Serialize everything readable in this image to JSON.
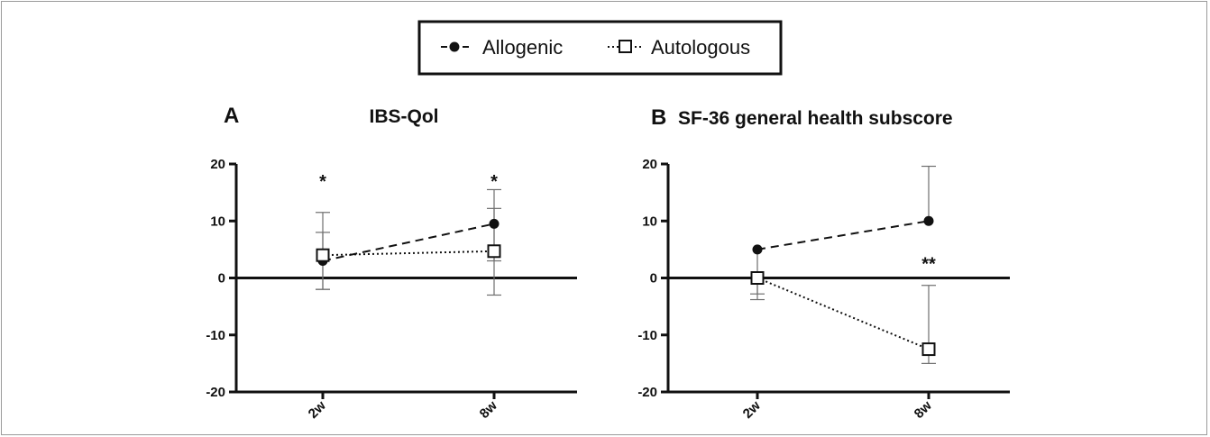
{
  "legend": {
    "items": [
      {
        "label": "Allogenic",
        "marker": "filled-circle",
        "line": "dashed"
      },
      {
        "label": "Autologous",
        "marker": "open-square",
        "line": "dotted"
      }
    ]
  },
  "colors": {
    "ink": "#111111",
    "error_bar": "#6e6e6e",
    "background": "#ffffff"
  },
  "chart_data": [
    {
      "type": "line",
      "panel_letter": "A",
      "title": "IBS-Qol",
      "categories": [
        "2w",
        "8w"
      ],
      "ylim": [
        -20,
        20
      ],
      "yticks": [
        20,
        10,
        0,
        -10,
        -20
      ],
      "grid": false,
      "series": [
        {
          "name": "Allogenic",
          "values": [
            3,
            9.5
          ],
          "error_low": [
            -2,
            3
          ],
          "error_high": [
            8,
            15.5
          ]
        },
        {
          "name": "Autologous",
          "values": [
            4,
            4.7
          ],
          "error_low": [
            -2,
            -3
          ],
          "error_high": [
            11.5,
            12.2
          ]
        }
      ],
      "annotations": [
        {
          "category": "2w",
          "y": 17,
          "text": "*"
        },
        {
          "category": "8w",
          "y": 17,
          "text": "*"
        }
      ]
    },
    {
      "type": "line",
      "panel_letter": "B",
      "title": "SF-36 general health subscore",
      "categories": [
        "2w",
        "8w"
      ],
      "ylim": [
        -20,
        20
      ],
      "yticks": [
        20,
        10,
        0,
        -10,
        -20
      ],
      "grid": false,
      "series": [
        {
          "name": "Allogenic",
          "values": [
            5,
            10
          ],
          "error_low": [
            -3.8,
            10
          ],
          "error_high": [
            5,
            19.6
          ]
        },
        {
          "name": "Autologous",
          "values": [
            0,
            -12.5
          ],
          "error_low": [
            -2.8,
            -15
          ],
          "error_high": [
            0,
            -1.3
          ]
        }
      ],
      "annotations": [
        {
          "category": "8w",
          "y": 2.5,
          "text": "**"
        }
      ]
    }
  ]
}
